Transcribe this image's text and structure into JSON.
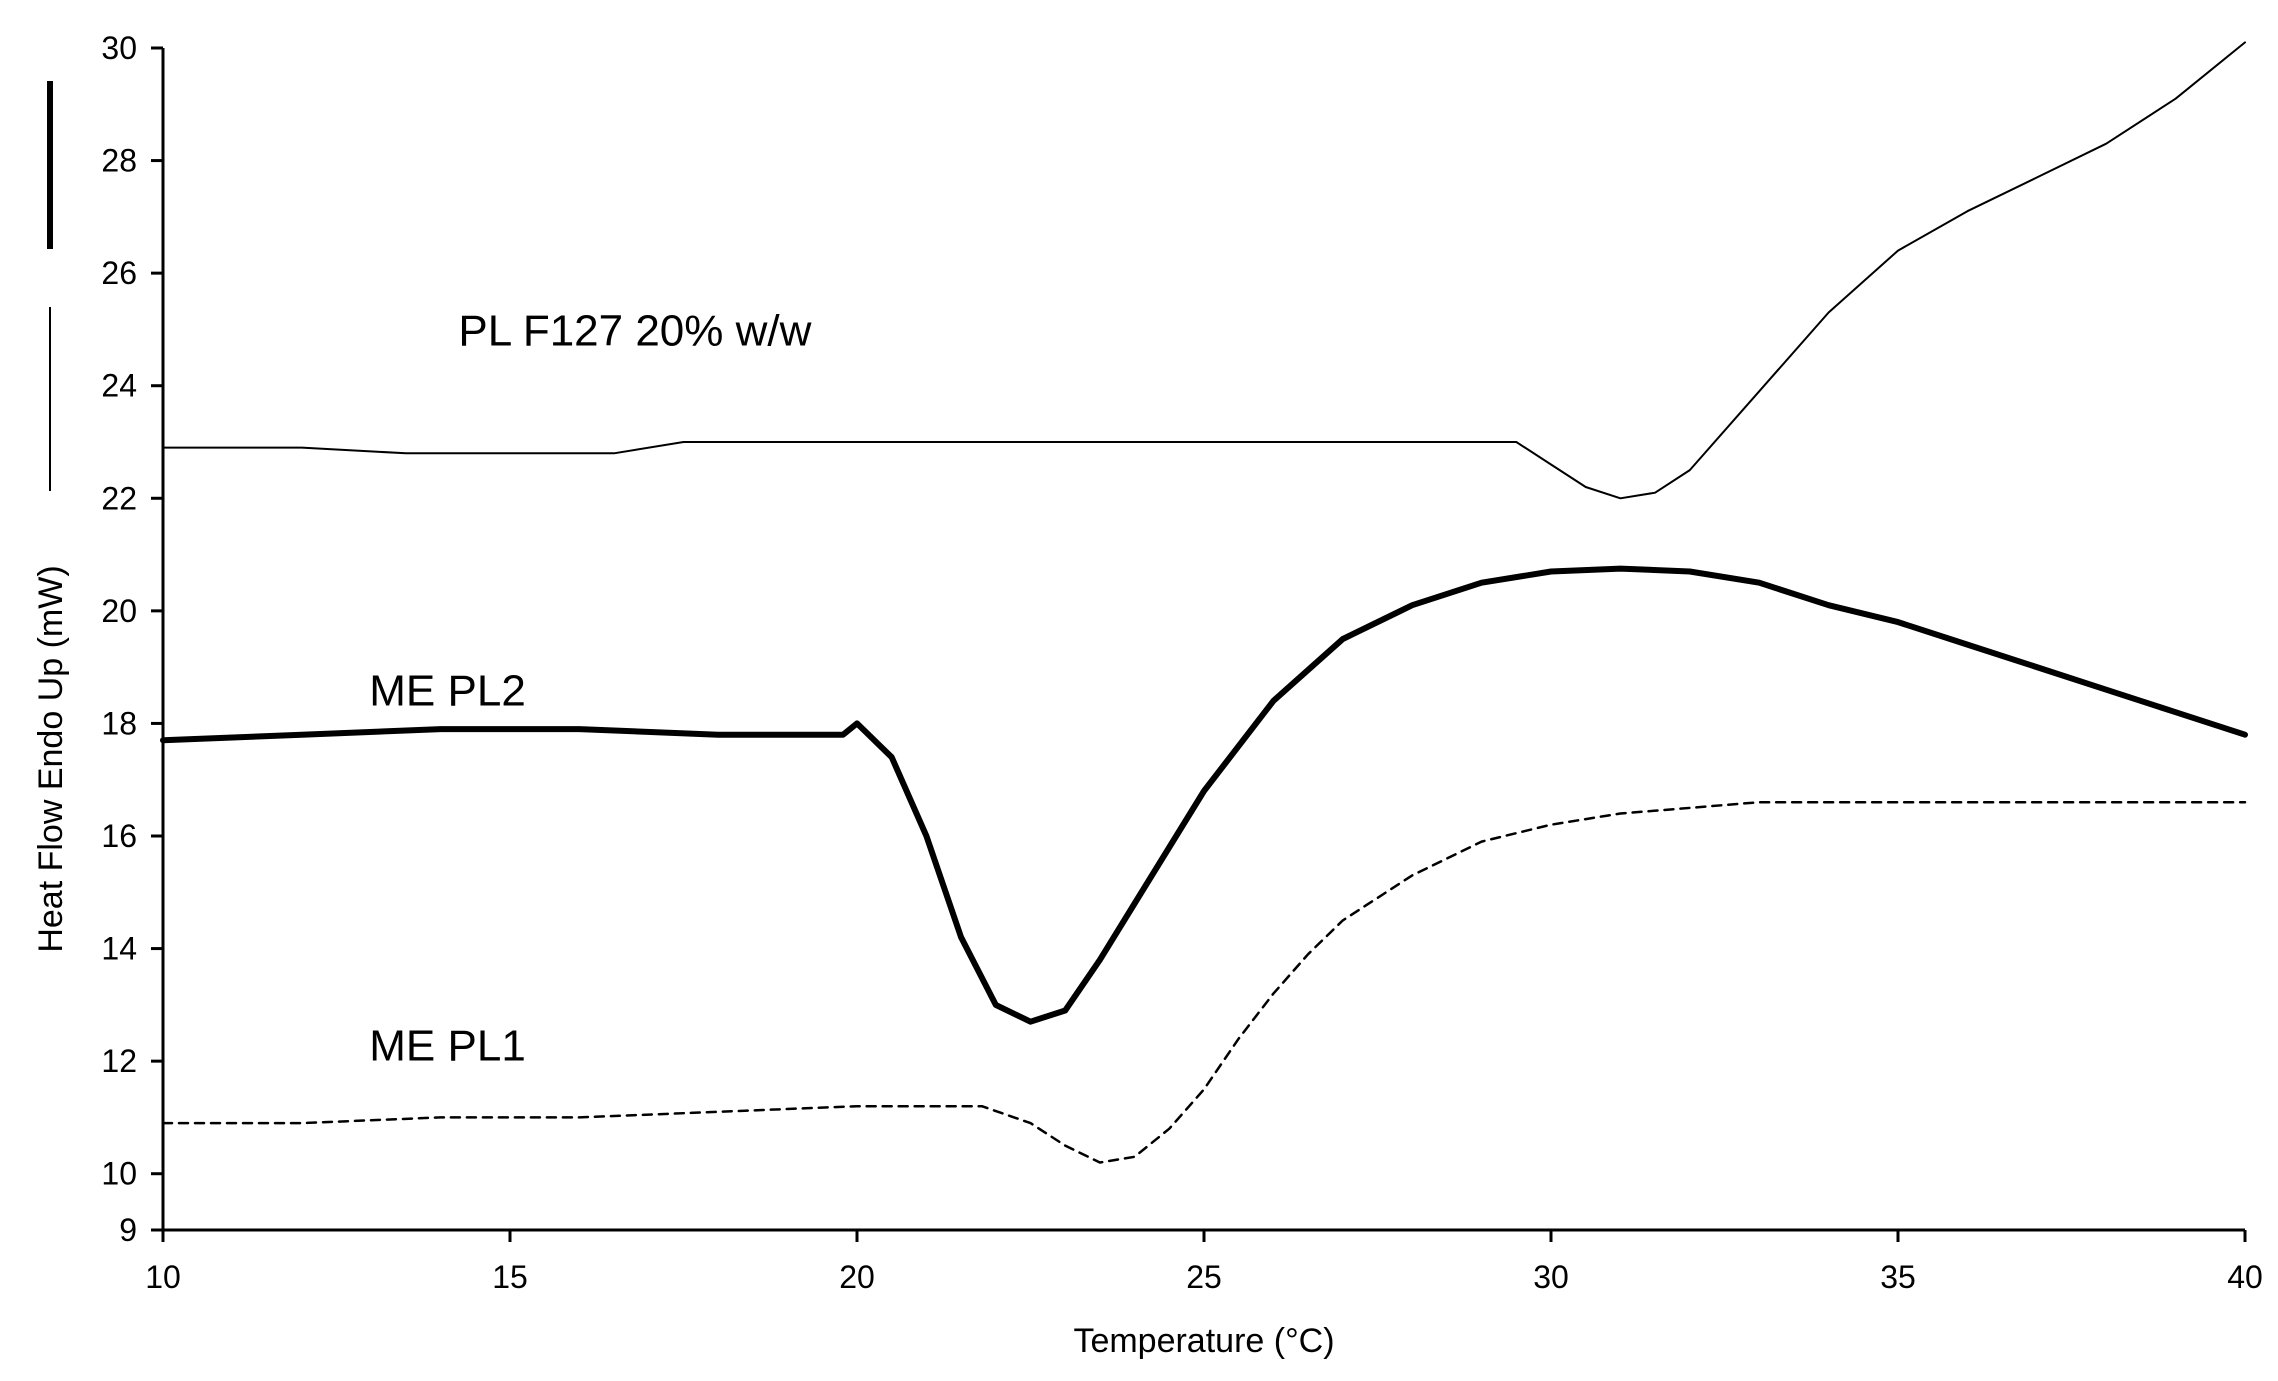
{
  "chart_data": {
    "type": "line",
    "title": "",
    "xlabel": "Temperature (°C)",
    "ylabel": "Heat Flow Endo Up (mW)",
    "xlim": [
      10,
      40
    ],
    "ylim": [
      9,
      30
    ],
    "xticks": [
      10,
      15,
      20,
      25,
      30,
      35,
      40
    ],
    "yticks": [
      9,
      10,
      12,
      14,
      16,
      18,
      20,
      22,
      24,
      26,
      28,
      30
    ],
    "grid": false,
    "series": [
      {
        "name": "PL F127 20% w/w",
        "style": "thin",
        "x": [
          10,
          12,
          13.5,
          15,
          16.5,
          17.5,
          20,
          25,
          29.5,
          30,
          30.5,
          31,
          31.5,
          32,
          33,
          34,
          35,
          36,
          37,
          38,
          39,
          40
        ],
        "y": [
          22.9,
          22.9,
          22.8,
          22.8,
          22.8,
          23.0,
          23.0,
          23.0,
          23.0,
          22.6,
          22.2,
          22.0,
          22.1,
          22.5,
          23.9,
          25.3,
          26.4,
          27.1,
          27.7,
          28.3,
          29.1,
          30.1
        ]
      },
      {
        "name": "ME PL2",
        "style": "thick",
        "x": [
          10,
          12,
          14,
          16,
          18,
          19.8,
          20.0,
          20.5,
          21,
          21.5,
          22,
          22.5,
          23,
          23.5,
          24,
          25,
          26,
          27,
          28,
          29,
          30,
          31,
          32,
          33,
          34,
          35,
          36,
          37,
          38,
          39,
          40
        ],
        "y": [
          17.7,
          17.8,
          17.9,
          17.9,
          17.8,
          17.8,
          18.0,
          17.4,
          16.0,
          14.2,
          13.0,
          12.7,
          12.9,
          13.8,
          14.8,
          16.8,
          18.4,
          19.5,
          20.1,
          20.5,
          20.7,
          20.75,
          20.7,
          20.5,
          20.1,
          19.8,
          19.4,
          19.0,
          18.6,
          18.2,
          17.8
        ]
      },
      {
        "name": "ME PL1",
        "style": "dashed",
        "x": [
          10,
          12,
          14,
          16,
          18,
          20,
          21.8,
          22.5,
          23,
          23.5,
          24,
          24.5,
          25,
          25.5,
          26,
          26.5,
          27,
          27.5,
          28,
          29,
          30,
          31,
          32,
          33,
          34,
          35,
          36,
          37,
          38,
          39,
          40
        ],
        "y": [
          10.9,
          10.9,
          11.0,
          11.0,
          11.1,
          11.2,
          11.2,
          10.9,
          10.5,
          10.2,
          10.3,
          10.8,
          11.5,
          12.4,
          13.2,
          13.9,
          14.5,
          14.9,
          15.3,
          15.9,
          16.2,
          16.4,
          16.5,
          16.6,
          16.6,
          16.6,
          16.6,
          16.6,
          16.6,
          16.6,
          16.6
        ]
      }
    ],
    "annotations": [
      {
        "text": "PL F127 20% w/w",
        "x": 16.8,
        "y": 25.0
      },
      {
        "text": "ME PL2",
        "x": 14.1,
        "y": 18.6
      },
      {
        "text": "ME PL1",
        "x": 14.1,
        "y": 12.3
      }
    ]
  }
}
